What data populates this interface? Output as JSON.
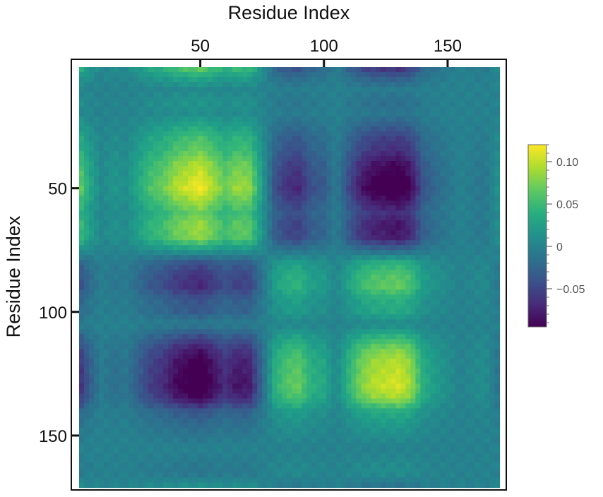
{
  "chart_data": {
    "type": "heatmap",
    "title": "",
    "xlabel": "Residue Index",
    "ylabel": "Residue Index",
    "x_axis_position": "top",
    "y_axis_inverted": true,
    "xlim": [
      1,
      170
    ],
    "ylim": [
      1,
      170
    ],
    "x_ticks": [
      50,
      100,
      150
    ],
    "x_tick_labels": [
      "50",
      "100",
      "150"
    ],
    "y_ticks": [
      50,
      100,
      150
    ],
    "y_tick_labels": [
      "50",
      "100",
      "150"
    ],
    "grid": false,
    "colormap": "viridis",
    "colorbar": {
      "placement": "right",
      "range": [
        -0.095,
        0.12
      ],
      "ticks": [
        0.1,
        0.05,
        0,
        -0.05
      ],
      "tick_labels": [
        "0.10",
        "0.05",
        "0",
        "−0.05"
      ]
    },
    "axis_breakpoints": [
      0,
      5,
      10,
      15,
      20,
      25,
      30,
      35,
      40,
      45,
      50,
      55,
      60,
      65,
      70,
      75,
      80,
      85,
      90,
      95,
      100,
      105,
      110,
      115,
      120,
      125,
      130,
      135,
      140,
      145,
      150,
      155,
      160,
      165,
      170
    ],
    "axis_mode_values": [
      0.7,
      0.3,
      0.05,
      0.15,
      0.1,
      0.3,
      0.5,
      0.6,
      0.8,
      0.9,
      1.0,
      0.8,
      0.6,
      0.75,
      0.7,
      0.2,
      -0.35,
      -0.55,
      -0.6,
      -0.35,
      -0.3,
      -0.05,
      -0.4,
      -0.7,
      -0.85,
      -0.9,
      -0.95,
      -0.8,
      -0.35,
      -0.2,
      -0.1,
      0.0,
      -0.05,
      -0.1,
      0.1
    ],
    "value_scale": 0.12,
    "summary_values": {
      "peak_positive_value": 0.12,
      "peak_positive_location": [
        48,
        48
      ],
      "peak_negative_value": -0.095,
      "peak_negative_location": [
        125,
        48
      ]
    }
  }
}
